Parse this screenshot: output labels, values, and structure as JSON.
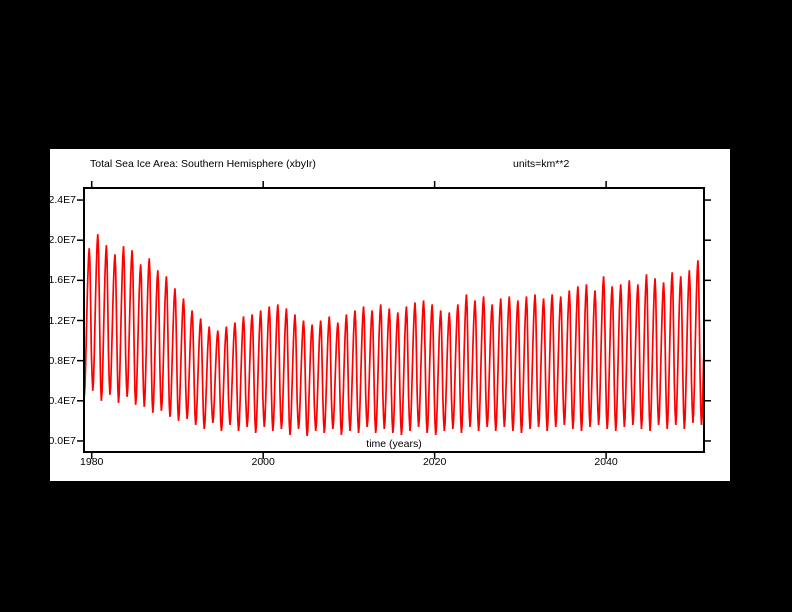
{
  "page": {
    "background_color": "#000000",
    "plot_background_color": "#ffffff",
    "axis_color": "#000000"
  },
  "chart_data": {
    "type": "line",
    "title": "Total Sea Ice Area: Southern Hemisphere (xbyIr)",
    "units_label": "units=km**2",
    "xlabel": "time (years)",
    "ylabel": "",
    "line_color": "#ff0000",
    "grid": false,
    "legend_position": "none",
    "x_tick_years": [
      1980,
      2000,
      2020,
      2040
    ],
    "x_tick_labels": [
      "1980",
      "2000",
      "2020",
      "2040"
    ],
    "y_tick_values": [
      0,
      4000000,
      8000000,
      12000000,
      16000000,
      20000000,
      24000000
    ],
    "y_tick_labels": [
      "0.0E7",
      "0.4E7",
      "0.8E7",
      "1.2E7",
      "1.6E7",
      "2.0E7",
      "2.4E7"
    ],
    "xlim": [
      1979.1,
      2051.42
    ],
    "ylim": [
      -1100000,
      25200000
    ],
    "sampling": "monthly",
    "start_year": 1979,
    "annual_max_e7": [
      1.92,
      2.06,
      1.95,
      1.86,
      1.94,
      1.9,
      1.76,
      1.82,
      1.7,
      1.64,
      1.52,
      1.42,
      1.3,
      1.22,
      1.14,
      1.1,
      1.14,
      1.18,
      1.24,
      1.26,
      1.3,
      1.34,
      1.36,
      1.32,
      1.26,
      1.2,
      1.16,
      1.2,
      1.24,
      1.18,
      1.26,
      1.3,
      1.34,
      1.3,
      1.36,
      1.32,
      1.28,
      1.34,
      1.38,
      1.4,
      1.36,
      1.3,
      1.28,
      1.36,
      1.46,
      1.4,
      1.44,
      1.36,
      1.42,
      1.44,
      1.4,
      1.44,
      1.46,
      1.42,
      1.46,
      1.44,
      1.5,
      1.54,
      1.56,
      1.5,
      1.64,
      1.54,
      1.56,
      1.6,
      1.56,
      1.66,
      1.62,
      1.58,
      1.68,
      1.64,
      1.7,
      1.8,
      1.74
    ],
    "annual_min_e7": [
      0.44,
      0.5,
      0.4,
      0.46,
      0.38,
      0.44,
      0.36,
      0.34,
      0.28,
      0.3,
      0.24,
      0.2,
      0.22,
      0.16,
      0.12,
      0.18,
      0.1,
      0.16,
      0.1,
      0.14,
      0.08,
      0.14,
      0.1,
      0.12,
      0.06,
      0.12,
      0.05,
      0.1,
      0.08,
      0.12,
      0.06,
      0.1,
      0.08,
      0.14,
      0.08,
      0.12,
      0.08,
      0.06,
      0.1,
      0.14,
      0.08,
      0.06,
      0.1,
      0.12,
      0.08,
      0.14,
      0.1,
      0.14,
      0.1,
      0.14,
      0.1,
      0.08,
      0.12,
      0.14,
      0.1,
      0.14,
      0.16,
      0.12,
      0.1,
      0.14,
      0.16,
      0.12,
      0.1,
      0.14,
      0.16,
      0.12,
      0.1,
      0.16,
      0.12,
      0.16,
      0.12,
      0.18,
      0.16
    ],
    "seasonal_weights_jan_dec": [
      0.1,
      0.0,
      0.06,
      0.22,
      0.42,
      0.62,
      0.8,
      0.93,
      1.0,
      0.9,
      0.62,
      0.3
    ]
  }
}
